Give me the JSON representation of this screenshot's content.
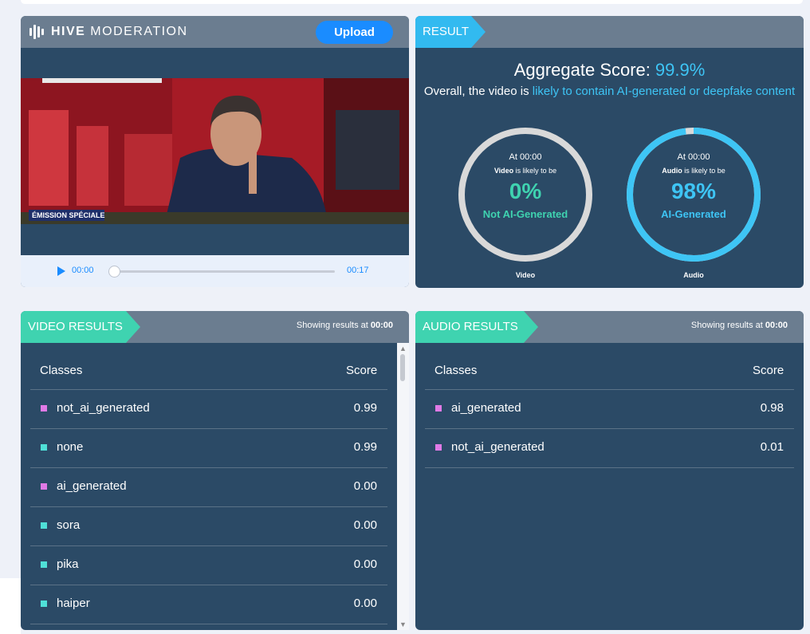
{
  "player": {
    "logo_bold": "HIVE",
    "logo_light": "MODERATION",
    "upload_label": "Upload",
    "banner_text": "ÉMISSION SPÉCIALE",
    "current_time": "00:00",
    "duration": "00:17",
    "progress_fraction": 0
  },
  "result": {
    "tab_label": "RESULT",
    "aggregate_label": "Aggregate Score:",
    "aggregate_value": "99.9%",
    "overall_prefix": "Overall, the video is",
    "overall_highlight": "likely to contain AI-generated or deepfake content",
    "video_gauge": {
      "at": "At 00:00",
      "subject": "Video",
      "sub_rest": " is likely to be",
      "percent": "0%",
      "verdict": "Not AI-Generated",
      "caption": "Video",
      "fraction": 0
    },
    "audio_gauge": {
      "at": "At 00:00",
      "subject": "Audio",
      "sub_rest": " is likely to be",
      "percent": "98%",
      "verdict": "AI-Generated",
      "caption": "Audio",
      "fraction": 0.98
    }
  },
  "video_results": {
    "tab_label": "VIDEO RESULTS",
    "showing_prefix": "Showing results at ",
    "showing_time": "00:00",
    "col_classes": "Classes",
    "col_score": "Score",
    "rows": [
      {
        "cls": "not_ai_generated",
        "score": "0.99",
        "color": "#e07ae6"
      },
      {
        "cls": "none",
        "score": "0.99",
        "color": "#4fe0d8"
      },
      {
        "cls": "ai_generated",
        "score": "0.00",
        "color": "#e07ae6"
      },
      {
        "cls": "sora",
        "score": "0.00",
        "color": "#4fe0d8"
      },
      {
        "cls": "pika",
        "score": "0.00",
        "color": "#4fe0d8"
      },
      {
        "cls": "haiper",
        "score": "0.00",
        "color": "#4fe0d8"
      }
    ]
  },
  "audio_results": {
    "tab_label": "AUDIO RESULTS",
    "showing_prefix": "Showing results at ",
    "showing_time": "00:00",
    "col_classes": "Classes",
    "col_score": "Score",
    "rows": [
      {
        "cls": "ai_generated",
        "score": "0.98",
        "color": "#e07ae6"
      },
      {
        "cls": "not_ai_generated",
        "score": "0.01",
        "color": "#e07ae6"
      }
    ]
  },
  "colors": {
    "panel": "#2b4a66",
    "header": "#6b7d90",
    "accent_blue": "#3ec5f5",
    "accent_green": "#3fd3b0",
    "gauge_grey": "#d9d9d9"
  }
}
